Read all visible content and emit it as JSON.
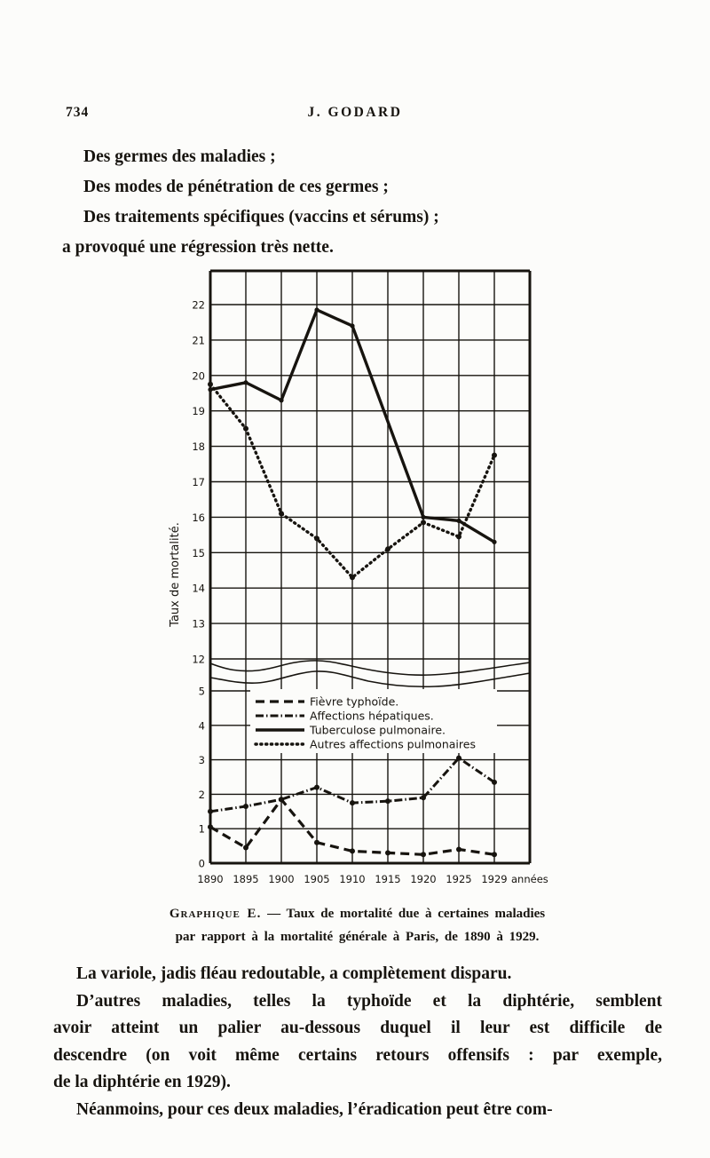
{
  "page": {
    "number": "734",
    "running_head": "J. GODARD"
  },
  "intro": [
    "Des germes des maladies ;",
    "Des modes de pénétration de ces germes ;",
    "Des traitements spécifiques (vaccins et sérums) ;",
    "a provoqué une régression très nette."
  ],
  "caption": {
    "label": "Graphique E.",
    "rest1": " — Taux de mortalité due à certaines maladies",
    "line2": "par rapport à la mortalité générale à Paris, de 1890 à 1929."
  },
  "body": [
    "La variole, jadis fléau redoutable, a complètement disparu.",
    "D’autres maladies, telles la typhoïde et la diphtérie, semblent",
    "avoir atteint un palier au-dessous duquel il leur est difficile de",
    "descendre (on voit même certains retours offensifs : par exemple,",
    "de la diphtérie en 1929).",
    "Néanmoins, pour ces deux maladies, l’éradication peut être com-"
  ],
  "chart_data": {
    "type": "line",
    "title": "Graphique E",
    "ylabel": "Taux de mortalité.",
    "x_suffix_label": "années",
    "categories": [
      "1890",
      "1895",
      "1900",
      "1905",
      "1910",
      "1915",
      "1920",
      "1925",
      "1929"
    ],
    "axis_break": true,
    "top_axis": {
      "ylim": [
        12,
        23
      ],
      "ticks": [
        22,
        21,
        20,
        19,
        18,
        17,
        16,
        15,
        14,
        13,
        12
      ]
    },
    "bottom_axis": {
      "ylim": [
        0,
        5.2
      ],
      "ticks": [
        5,
        4,
        3,
        2,
        1,
        0
      ]
    },
    "grid": true,
    "legend_position": "inside-upper-left-of-lower-panel",
    "line_color": "#17140f",
    "series": [
      {
        "name": "Fièvre typhoïde.",
        "style": "dashed",
        "section": "bottom",
        "values": [
          1.05,
          0.45,
          1.85,
          0.6,
          0.35,
          0.3,
          0.25,
          0.4,
          0.25
        ]
      },
      {
        "name": "Affections hépatiques.",
        "style": "dashdot",
        "section": "bottom",
        "values": [
          1.5,
          1.65,
          1.85,
          2.2,
          1.75,
          1.8,
          1.9,
          3.05,
          2.35
        ]
      },
      {
        "name": "Tuberculose pulmonaire.",
        "style": "solid",
        "section": "top",
        "values": [
          19.6,
          19.8,
          19.3,
          21.85,
          21.4,
          null,
          16.0,
          15.9,
          15.3
        ]
      },
      {
        "name": "Autres affections pulmonaires",
        "style": "dotted",
        "section": "top",
        "values": [
          19.75,
          18.5,
          16.1,
          15.4,
          14.3,
          15.1,
          15.85,
          15.45,
          17.75
        ]
      }
    ]
  }
}
